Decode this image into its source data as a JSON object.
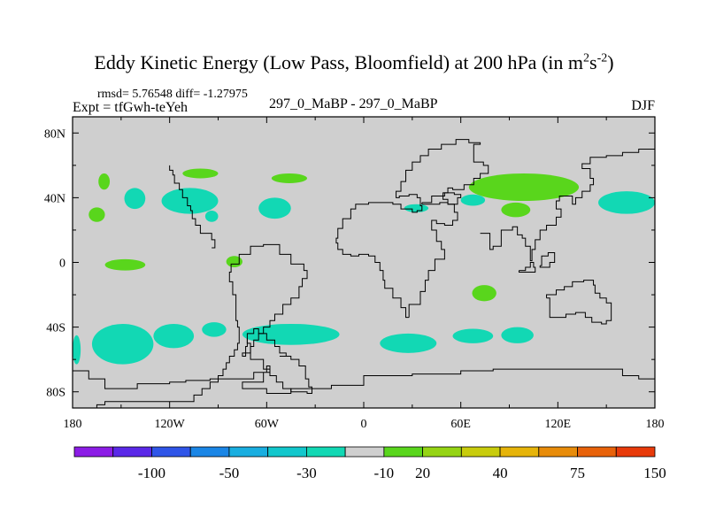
{
  "chart_data": {
    "type": "heatmap",
    "title": {
      "main": "Eddy Kinetic Energy (Low Pass, Bloomfield) at 200 hPa (in m",
      "sup1": "2",
      "mid": "s",
      "sup2": "-2",
      "end": ")"
    },
    "stats": {
      "rmsd_label": "rmsd= 5.76548",
      "diff_label": "diff= -1.27975"
    },
    "expt_label": "Expt = tfGwh-teYeh",
    "comparison_label": "297_0_MaBP - 297_0_MaBP",
    "season": "DJF",
    "xlim": [
      -180,
      180
    ],
    "ylim": [
      -90,
      90
    ],
    "x_ticks": [
      {
        "value": -180,
        "label": "180"
      },
      {
        "value": -120,
        "label": "120W"
      },
      {
        "value": -60,
        "label": "60W"
      },
      {
        "value": 0,
        "label": "0"
      },
      {
        "value": 60,
        "label": "60E"
      },
      {
        "value": 120,
        "label": "120E"
      },
      {
        "value": 180,
        "label": "180"
      }
    ],
    "y_ticks": [
      {
        "value": 80,
        "label": "80N"
      },
      {
        "value": 40,
        "label": "40N"
      },
      {
        "value": 0,
        "label": "0"
      },
      {
        "value": -40,
        "label": "40S"
      },
      {
        "value": -80,
        "label": "80S"
      }
    ],
    "colorbar": {
      "colors": [
        "#8c1ce6",
        "#5a28e8",
        "#2f55e8",
        "#1a86e6",
        "#19aee0",
        "#12c7cc",
        "#12d8b4",
        "#cfcfcf",
        "#59d61c",
        "#95d414",
        "#c8cc0c",
        "#e6b40a",
        "#e88c0a",
        "#e8620a",
        "#e83a0a"
      ],
      "labels": [
        {
          "boundary": 2,
          "label": "-100"
        },
        {
          "boundary": 4,
          "label": "-50"
        },
        {
          "boundary": 6,
          "label": "-30"
        },
        {
          "boundary": 8,
          "label": "-10"
        },
        {
          "boundary": 9,
          "label": "20"
        },
        {
          "boundary": 11,
          "label": "40"
        },
        {
          "boundary": 13,
          "label": "75"
        },
        {
          "boundary": 15,
          "label": "150"
        }
      ]
    },
    "background_color": "#cfcfcf",
    "anomaly_regions": [
      {
        "color": "#59d61c",
        "lon": [
          -164,
          -157
        ],
        "lat": [
          45,
          55
        ]
      },
      {
        "color": "#12d8b4",
        "lon": [
          -148,
          -135
        ],
        "lat": [
          33,
          46
        ]
      },
      {
        "color": "#12d8b4",
        "lon": [
          -125,
          -90
        ],
        "lat": [
          30,
          46
        ]
      },
      {
        "color": "#12d8b4",
        "lon": [
          -65,
          -45
        ],
        "lat": [
          27,
          40
        ]
      },
      {
        "color": "#59d61c",
        "lon": [
          -112,
          -90
        ],
        "lat": [
          52,
          58
        ]
      },
      {
        "color": "#59d61c",
        "lon": [
          -57,
          -35
        ],
        "lat": [
          49,
          55
        ]
      },
      {
        "color": "#59d61c",
        "lon": [
          -170,
          -160
        ],
        "lat": [
          25,
          34
        ]
      },
      {
        "color": "#12d8b4",
        "lon": [
          -98,
          -90
        ],
        "lat": [
          25,
          32
        ]
      },
      {
        "color": "#59d61c",
        "lon": [
          -160,
          -135
        ],
        "lat": [
          -5,
          2
        ]
      },
      {
        "color": "#59d61c",
        "lon": [
          -85,
          -75
        ],
        "lat": [
          -3,
          4
        ]
      },
      {
        "color": "#12d8b4",
        "lon": [
          -180,
          -175
        ],
        "lat": [
          -63,
          -45
        ]
      },
      {
        "color": "#12d8b4",
        "lon": [
          -168,
          -130
        ],
        "lat": [
          -63,
          -38
        ]
      },
      {
        "color": "#12d8b4",
        "lon": [
          -130,
          -105
        ],
        "lat": [
          -53,
          -38
        ]
      },
      {
        "color": "#12d8b4",
        "lon": [
          -100,
          -85
        ],
        "lat": [
          -46,
          -37
        ]
      },
      {
        "color": "#12d8b4",
        "lon": [
          -75,
          -15
        ],
        "lat": [
          -51,
          -38
        ]
      },
      {
        "color": "#12d8b4",
        "lon": [
          10,
          45
        ],
        "lat": [
          -56,
          -44
        ]
      },
      {
        "color": "#12d8b4",
        "lon": [
          55,
          80
        ],
        "lat": [
          -50,
          -41
        ]
      },
      {
        "color": "#59d61c",
        "lon": [
          65,
          133
        ],
        "lat": [
          38,
          55
        ]
      },
      {
        "color": "#59d61c",
        "lon": [
          85,
          103
        ],
        "lat": [
          28,
          37
        ]
      },
      {
        "color": "#12d8b4",
        "lon": [
          60,
          75
        ],
        "lat": [
          35,
          42
        ]
      },
      {
        "color": "#12d8b4",
        "lon": [
          25,
          40
        ],
        "lat": [
          31,
          36
        ]
      },
      {
        "color": "#12d8b4",
        "lon": [
          145,
          180
        ],
        "lat": [
          30,
          44
        ]
      },
      {
        "color": "#59d61c",
        "lon": [
          67,
          82
        ],
        "lat": [
          -24,
          -14
        ]
      },
      {
        "color": "#12d8b4",
        "lon": [
          85,
          105
        ],
        "lat": [
          -50,
          -40
        ]
      }
    ],
    "continent_outlines": [
      [
        [
          -165,
          -90
        ],
        [
          -165,
          -88
        ],
        [
          -160,
          -86
        ],
        [
          -110,
          -86
        ],
        [
          -105,
          -82
        ],
        [
          -100,
          -78
        ],
        [
          -95,
          -74
        ],
        [
          -90,
          -70
        ],
        [
          -87,
          -66
        ],
        [
          -85,
          -62
        ],
        [
          -83,
          -58
        ],
        [
          -80,
          -54
        ],
        [
          -78,
          -50
        ],
        [
          -77,
          -46
        ],
        [
          -77,
          -40
        ],
        [
          -78,
          -36
        ],
        [
          -79,
          -30
        ],
        [
          -79,
          -20
        ],
        [
          -81,
          -12
        ],
        [
          -83,
          -6
        ],
        [
          -82,
          -1
        ],
        [
          -77,
          5
        ],
        [
          -70,
          10
        ],
        [
          -62,
          11
        ],
        [
          -52,
          5
        ],
        [
          -45,
          -1
        ],
        [
          -37,
          -5
        ],
        [
          -35,
          -10
        ],
        [
          -38,
          -15
        ],
        [
          -40,
          -22
        ],
        [
          -45,
          -26
        ],
        [
          -50,
          -32
        ],
        [
          -55,
          -36
        ],
        [
          -58,
          -40
        ],
        [
          -62,
          -44
        ],
        [
          -65,
          -48
        ],
        [
          -68,
          -52
        ],
        [
          -70,
          -56
        ],
        [
          -73,
          -58
        ],
        [
          -75,
          -56
        ],
        [
          -73,
          -52
        ],
        [
          -72,
          -47
        ]
      ],
      [
        [
          -52,
          -58
        ],
        [
          -48,
          -56
        ],
        [
          -52,
          -52
        ],
        [
          -55,
          -48
        ],
        [
          -60,
          -44
        ],
        [
          -65,
          -41
        ],
        [
          -68,
          -44
        ],
        [
          -72,
          -50
        ],
        [
          -70,
          -60
        ],
        [
          -62,
          -66
        ],
        [
          -58,
          -70
        ],
        [
          -54,
          -74
        ],
        [
          -50,
          -78
        ],
        [
          -45,
          -80
        ],
        [
          -35,
          -81
        ],
        [
          -32,
          -77
        ],
        [
          -34,
          -72
        ],
        [
          -36,
          -64
        ],
        [
          -40,
          -60
        ],
        [
          -45,
          -58
        ],
        [
          -52,
          -58
        ]
      ],
      [
        [
          -94,
          9
        ],
        [
          -92,
          14
        ],
        [
          -94,
          18
        ],
        [
          -101,
          23
        ],
        [
          -104,
          27
        ],
        [
          -106,
          32
        ],
        [
          -107,
          35
        ],
        [
          -109,
          40
        ],
        [
          -112,
          45
        ],
        [
          -114,
          49
        ],
        [
          -117,
          54
        ],
        [
          -118,
          57
        ],
        [
          -120,
          60
        ]
      ],
      [
        [
          28,
          -34
        ],
        [
          26,
          -28
        ],
        [
          23,
          -22
        ],
        [
          18,
          -16
        ],
        [
          13,
          -11
        ],
        [
          12,
          -5
        ],
        [
          10,
          0
        ],
        [
          7,
          4
        ],
        [
          3,
          5
        ],
        [
          -3,
          4
        ],
        [
          -8,
          5
        ],
        [
          -13,
          8
        ],
        [
          -16,
          12
        ],
        [
          -17,
          15
        ],
        [
          -16,
          21
        ],
        [
          -13,
          27
        ],
        [
          -8,
          33
        ],
        [
          -5,
          36
        ],
        [
          3,
          37
        ],
        [
          10,
          37
        ],
        [
          18,
          36
        ],
        [
          23,
          33
        ],
        [
          30,
          31
        ],
        [
          33,
          32
        ],
        [
          36,
          35
        ],
        [
          35,
          40
        ],
        [
          33,
          42
        ],
        [
          28,
          41
        ],
        [
          22,
          40
        ],
        [
          20,
          44
        ],
        [
          23,
          50
        ],
        [
          26,
          57
        ],
        [
          30,
          62
        ],
        [
          35,
          66
        ],
        [
          40,
          70
        ],
        [
          48,
          73
        ],
        [
          57,
          76
        ],
        [
          65,
          74
        ],
        [
          72,
          73
        ],
        [
          68,
          62
        ],
        [
          74,
          60
        ],
        [
          77,
          55
        ],
        [
          72,
          52
        ],
        [
          68,
          48
        ],
        [
          62,
          45
        ],
        [
          55,
          46
        ],
        [
          52,
          43
        ],
        [
          49,
          39
        ],
        [
          52,
          36
        ],
        [
          56,
          31
        ],
        [
          58,
          26
        ],
        [
          55,
          23
        ],
        [
          50,
          24
        ],
        [
          45,
          26
        ],
        [
          42,
          20
        ],
        [
          45,
          13
        ],
        [
          48,
          8
        ],
        [
          50,
          2
        ],
        [
          44,
          -5
        ],
        [
          40,
          -11
        ],
        [
          38,
          -18
        ],
        [
          35,
          -26
        ],
        [
          28,
          -34
        ]
      ],
      [
        [
          36,
          37
        ],
        [
          42,
          41
        ],
        [
          50,
          43
        ],
        [
          56,
          42
        ],
        [
          60,
          40
        ],
        [
          58,
          36
        ],
        [
          52,
          37
        ],
        [
          47,
          36
        ],
        [
          42,
          36
        ],
        [
          36,
          37
        ]
      ],
      [
        [
          72,
          18
        ],
        [
          78,
          8
        ],
        [
          80,
          10
        ],
        [
          85,
          20
        ],
        [
          92,
          22
        ],
        [
          95,
          17
        ],
        [
          98,
          15
        ],
        [
          100,
          10
        ],
        [
          103,
          1
        ],
        [
          104,
          8
        ],
        [
          106,
          14
        ],
        [
          109,
          20
        ],
        [
          113,
          23
        ],
        [
          119,
          28
        ],
        [
          122,
          33
        ],
        [
          119,
          38
        ],
        [
          121,
          41
        ],
        [
          125,
          41
        ],
        [
          129,
          36
        ],
        [
          131,
          40
        ],
        [
          135,
          44
        ],
        [
          140,
          48
        ],
        [
          142,
          52
        ],
        [
          140,
          58
        ],
        [
          135,
          61
        ],
        [
          140,
          65
        ],
        [
          150,
          66
        ],
        [
          160,
          68
        ],
        [
          170,
          70
        ],
        [
          178,
          70
        ],
        [
          180,
          69
        ]
      ],
      [
        [
          113,
          -22
        ],
        [
          115,
          -34
        ],
        [
          120,
          -34
        ],
        [
          125,
          -32
        ],
        [
          131,
          -31
        ],
        [
          137,
          -34
        ],
        [
          141,
          -37
        ],
        [
          147,
          -38
        ],
        [
          150,
          -36
        ],
        [
          153,
          -29
        ],
        [
          153,
          -25
        ],
        [
          150,
          -22
        ],
        [
          146,
          -19
        ],
        [
          143,
          -14
        ],
        [
          142,
          -11
        ],
        [
          136,
          -12
        ],
        [
          132,
          -12
        ],
        [
          129,
          -15
        ],
        [
          124,
          -17
        ],
        [
          119,
          -20
        ],
        [
          113,
          -22
        ]
      ],
      [
        [
          96,
          -5
        ],
        [
          100,
          -3
        ],
        [
          103,
          0
        ],
        [
          105,
          -3
        ],
        [
          106,
          -6
        ],
        [
          101,
          -6
        ],
        [
          96,
          -5
        ]
      ],
      [
        [
          109,
          -2
        ],
        [
          110,
          4
        ],
        [
          114,
          6
        ],
        [
          118,
          5
        ],
        [
          118,
          0
        ],
        [
          115,
          -3
        ],
        [
          109,
          -2
        ]
      ],
      [
        [
          -180,
          -67
        ],
        [
          -170,
          -72
        ],
        [
          -160,
          -78
        ],
        [
          -140,
          -75
        ],
        [
          -120,
          -74
        ],
        [
          -110,
          -73
        ],
        [
          -95,
          -72
        ],
        [
          -80,
          -72
        ],
        [
          -68,
          -68
        ],
        [
          -60,
          -64
        ],
        [
          -58,
          -68
        ],
        [
          -62,
          -74
        ],
        [
          -75,
          -78
        ],
        [
          -60,
          -81
        ],
        [
          -45,
          -78
        ],
        [
          -20,
          -76
        ],
        [
          0,
          -70
        ],
        [
          30,
          -69
        ],
        [
          60,
          -67
        ],
        [
          80,
          -66
        ],
        [
          100,
          -66
        ],
        [
          130,
          -66
        ],
        [
          160,
          -70
        ],
        [
          170,
          -72
        ],
        [
          180,
          -67
        ]
      ]
    ]
  }
}
